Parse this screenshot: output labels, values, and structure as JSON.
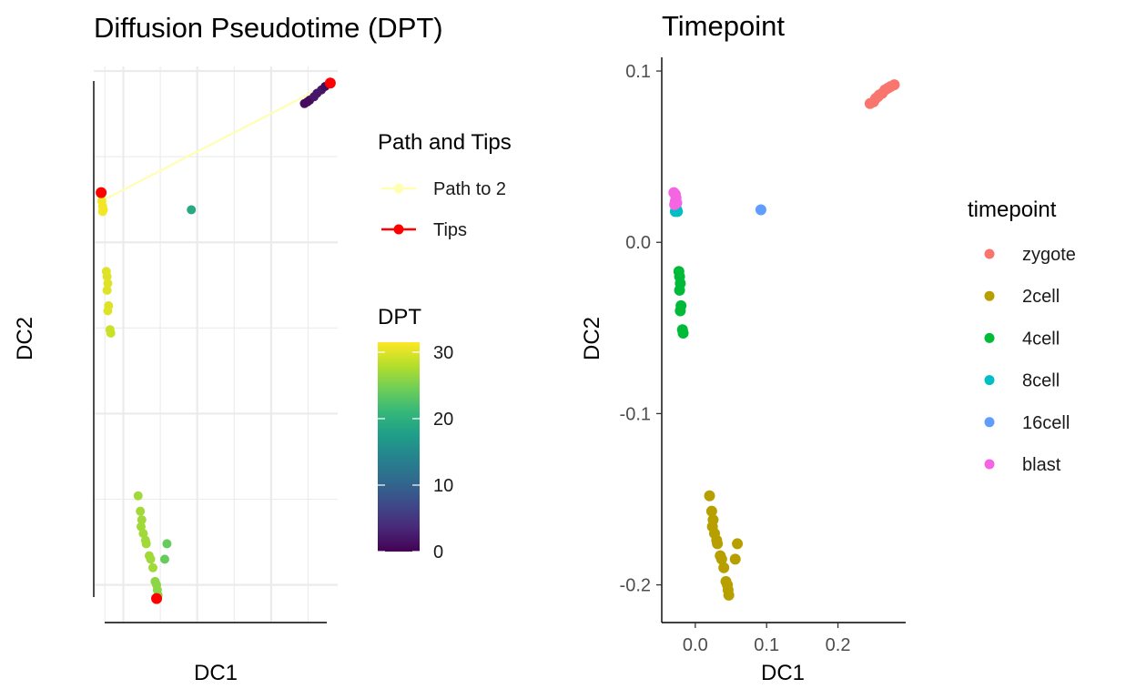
{
  "colors": {
    "path": "#ffffb3",
    "tips": "#ff0000",
    "gridline": "#ebebeb",
    "axis": "#000000",
    "tick_text": "#4d4d4d",
    "viridis": [
      "#440154",
      "#482878",
      "#3e4989",
      "#31688e",
      "#26828e",
      "#1f9e89",
      "#35b779",
      "#6ece58",
      "#b5de2b",
      "#fde725"
    ]
  },
  "chart_data": [
    {
      "type": "scatter",
      "title": "Diffusion Pseudotime (DPT)",
      "xlabel": "DC1",
      "ylabel": "DC2",
      "x_tick_labels_shown": false,
      "y_tick_labels_shown": false,
      "grid": true,
      "xlim": [
        -0.04,
        0.29
      ],
      "ylim": [
        -0.222,
        0.108
      ],
      "legend_path": {
        "title": "Path and Tips",
        "items": [
          {
            "label": "Path to 2",
            "color": "#ffffb3"
          },
          {
            "label": "Tips",
            "color": "#ff0000"
          }
        ]
      },
      "colorbar": {
        "title": "DPT",
        "min": 0,
        "max": 31.5,
        "ticks": [
          "0",
          "10",
          "20",
          "30"
        ],
        "tick_values": [
          0,
          10,
          20,
          30
        ]
      },
      "path": [
        [
          -0.03,
          0.024
        ],
        [
          0.28,
          0.093
        ]
      ],
      "tips": [
        [
          -0.03,
          0.029
        ],
        [
          0.28,
          0.093
        ],
        [
          0.045,
          -0.208
        ]
      ],
      "points": [
        {
          "x": 0.245,
          "y": 0.081,
          "dpt": 1
        },
        {
          "x": 0.252,
          "y": 0.083,
          "dpt": 1
        },
        {
          "x": 0.258,
          "y": 0.085,
          "dpt": 2
        },
        {
          "x": 0.262,
          "y": 0.087,
          "dpt": 2
        },
        {
          "x": 0.268,
          "y": 0.089,
          "dpt": 2
        },
        {
          "x": 0.273,
          "y": 0.091,
          "dpt": 1
        },
        {
          "x": 0.279,
          "y": 0.093,
          "dpt": 0
        },
        {
          "x": 0.249,
          "y": 0.082,
          "dpt": 1
        },
        {
          "x": 0.092,
          "y": 0.019,
          "dpt": 19
        },
        {
          "x": -0.03,
          "y": 0.028,
          "dpt": 31
        },
        {
          "x": -0.029,
          "y": 0.024,
          "dpt": 31
        },
        {
          "x": -0.028,
          "y": 0.021,
          "dpt": 31
        },
        {
          "x": -0.027,
          "y": 0.019,
          "dpt": 31
        },
        {
          "x": -0.028,
          "y": 0.018,
          "dpt": 31
        },
        {
          "x": -0.023,
          "y": -0.017,
          "dpt": 30
        },
        {
          "x": -0.022,
          "y": -0.02,
          "dpt": 30
        },
        {
          "x": -0.021,
          "y": -0.024,
          "dpt": 30
        },
        {
          "x": -0.022,
          "y": -0.028,
          "dpt": 30
        },
        {
          "x": -0.02,
          "y": -0.037,
          "dpt": 30
        },
        {
          "x": -0.021,
          "y": -0.04,
          "dpt": 30
        },
        {
          "x": -0.018,
          "y": -0.051,
          "dpt": 29
        },
        {
          "x": -0.017,
          "y": -0.053,
          "dpt": 29
        },
        {
          "x": 0.02,
          "y": -0.148,
          "dpt": 27
        },
        {
          "x": 0.023,
          "y": -0.157,
          "dpt": 27
        },
        {
          "x": 0.025,
          "y": -0.162,
          "dpt": 27
        },
        {
          "x": 0.024,
          "y": -0.166,
          "dpt": 27
        },
        {
          "x": 0.027,
          "y": -0.17,
          "dpt": 27
        },
        {
          "x": 0.03,
          "y": -0.174,
          "dpt": 27
        },
        {
          "x": 0.031,
          "y": -0.176,
          "dpt": 27
        },
        {
          "x": 0.035,
          "y": -0.183,
          "dpt": 27
        },
        {
          "x": 0.037,
          "y": -0.185,
          "dpt": 27
        },
        {
          "x": 0.04,
          "y": -0.19,
          "dpt": 27
        },
        {
          "x": 0.043,
          "y": -0.198,
          "dpt": 26
        },
        {
          "x": 0.045,
          "y": -0.2,
          "dpt": 26
        },
        {
          "x": 0.046,
          "y": -0.203,
          "dpt": 26
        },
        {
          "x": 0.047,
          "y": -0.206,
          "dpt": 26
        },
        {
          "x": 0.059,
          "y": -0.176,
          "dpt": 24
        },
        {
          "x": 0.056,
          "y": -0.185,
          "dpt": 24
        }
      ]
    },
    {
      "type": "scatter",
      "title": "Timepoint",
      "xlabel": "DC1",
      "ylabel": "DC2",
      "grid": false,
      "xlim": [
        -0.047,
        0.295
      ],
      "ylim": [
        -0.222,
        0.108
      ],
      "x_ticks": [
        0.0,
        0.1,
        0.2
      ],
      "x_tick_labels": [
        "0.0",
        "0.1",
        "0.2"
      ],
      "y_ticks": [
        0.1,
        0.0,
        -0.1,
        -0.2
      ],
      "y_tick_labels": [
        "0.1",
        "0.0",
        "-0.1",
        "-0.2"
      ],
      "legend": {
        "title": "timepoint",
        "items": [
          {
            "label": "zygote",
            "color": "#f8766d"
          },
          {
            "label": "2cell",
            "color": "#b79f00"
          },
          {
            "label": "4cell",
            "color": "#00ba38"
          },
          {
            "label": "8cell",
            "color": "#00bfc4"
          },
          {
            "label": "16cell",
            "color": "#619cff"
          },
          {
            "label": "blast",
            "color": "#f564e3"
          }
        ]
      },
      "series": [
        {
          "name": "zygote",
          "points": [
            [
              0.245,
              0.081
            ],
            [
              0.25,
              0.082
            ],
            [
              0.253,
              0.084
            ],
            [
              0.258,
              0.086
            ],
            [
              0.262,
              0.087
            ],
            [
              0.266,
              0.089
            ],
            [
              0.27,
              0.09
            ],
            [
              0.274,
              0.091
            ],
            [
              0.279,
              0.092
            ],
            [
              0.256,
              0.085
            ]
          ]
        },
        {
          "name": "2cell",
          "points": [
            [
              0.02,
              -0.148
            ],
            [
              0.023,
              -0.157
            ],
            [
              0.025,
              -0.162
            ],
            [
              0.024,
              -0.166
            ],
            [
              0.027,
              -0.17
            ],
            [
              0.03,
              -0.174
            ],
            [
              0.031,
              -0.176
            ],
            [
              0.035,
              -0.183
            ],
            [
              0.037,
              -0.185
            ],
            [
              0.04,
              -0.19
            ],
            [
              0.043,
              -0.198
            ],
            [
              0.045,
              -0.2
            ],
            [
              0.046,
              -0.203
            ],
            [
              0.047,
              -0.206
            ],
            [
              0.059,
              -0.176
            ],
            [
              0.056,
              -0.185
            ]
          ]
        },
        {
          "name": "4cell",
          "points": [
            [
              -0.023,
              -0.017
            ],
            [
              -0.022,
              -0.02
            ],
            [
              -0.021,
              -0.024
            ],
            [
              -0.022,
              -0.028
            ],
            [
              -0.02,
              -0.037
            ],
            [
              -0.021,
              -0.04
            ],
            [
              -0.018,
              -0.051
            ],
            [
              -0.017,
              -0.053
            ]
          ]
        },
        {
          "name": "8cell",
          "points": [
            [
              -0.028,
              0.018
            ],
            [
              -0.026,
              0.019
            ],
            [
              -0.027,
              0.02
            ],
            [
              -0.025,
              0.018
            ]
          ]
        },
        {
          "name": "16cell",
          "points": [
            [
              0.092,
              0.019
            ]
          ]
        },
        {
          "name": "blast",
          "points": [
            [
              -0.03,
              0.029
            ],
            [
              -0.028,
              0.028
            ],
            [
              -0.027,
              0.026
            ],
            [
              -0.028,
              0.024
            ],
            [
              -0.026,
              0.023
            ],
            [
              -0.029,
              0.022
            ]
          ]
        }
      ]
    }
  ]
}
